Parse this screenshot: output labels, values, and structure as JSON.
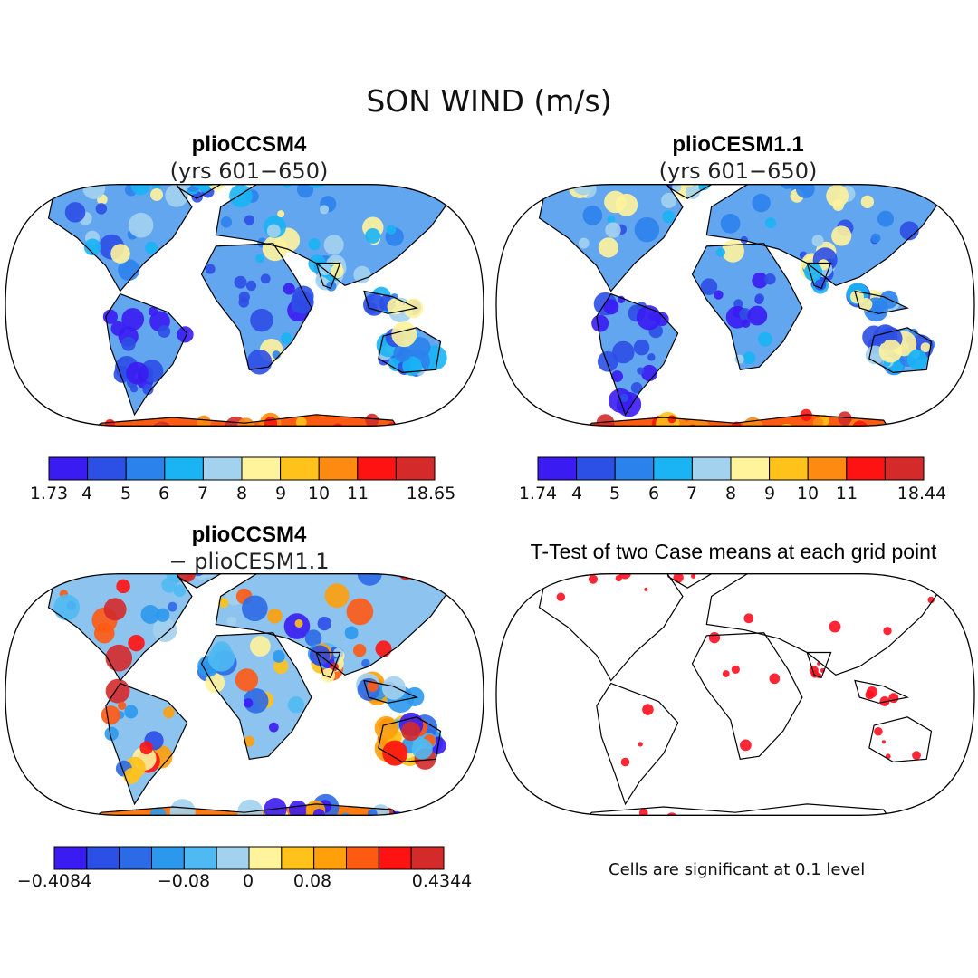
{
  "title": "SON WIND (m/s)",
  "colors": {
    "land": "#63a6f0",
    "outline": "#000000",
    "signif": "#ff1020"
  },
  "panels": {
    "top_left": {
      "title": "plioCCSM4",
      "subtitle": "(yrs 601−650)"
    },
    "top_right": {
      "title": "plioCESM1.1",
      "subtitle": "(yrs 601−650)"
    },
    "bottom_left": {
      "title": "plioCCSM4",
      "subtitle": "− plioCESM1.1"
    },
    "bottom_right": {
      "title": "T-Test of two Case means at each grid point"
    }
  },
  "note": "Cells are significant at 0.1 level",
  "chart_data": [
    {
      "type": "heatmap",
      "title": "plioCCSM4",
      "subtitle": "(yrs 601−650)",
      "colorbar": {
        "min_label": "1.73",
        "max_label": "18.65",
        "levels": [
          "4",
          "5",
          "6",
          "7",
          "8",
          "9",
          "10",
          "11"
        ],
        "colors": [
          "#3a1cf2",
          "#2c4fe6",
          "#2c82ec",
          "#1ab4f4",
          "#a3d2ee",
          "#fff39c",
          "#ffc21a",
          "#ff8a12",
          "#ff1212",
          "#d42a2a"
        ]
      }
    },
    {
      "type": "heatmap",
      "title": "plioCESM1.1",
      "subtitle": "(yrs 601−650)",
      "colorbar": {
        "min_label": "1.74",
        "max_label": "18.44",
        "levels": [
          "4",
          "5",
          "6",
          "7",
          "8",
          "9",
          "10",
          "11"
        ],
        "colors": [
          "#3a1cf2",
          "#2c4fe6",
          "#2c82ec",
          "#1ab4f4",
          "#a3d2ee",
          "#fff39c",
          "#ffc21a",
          "#ff8a12",
          "#ff1212",
          "#d42a2a"
        ]
      }
    },
    {
      "type": "heatmap",
      "title": "plioCCSM4",
      "subtitle": "− plioCESM1.1",
      "colorbar": {
        "min_label": "−0.4084",
        "max_label": "0.4344",
        "labels": [
          "−0.08",
          "0",
          "0.08"
        ],
        "colors": [
          "#3a1cf2",
          "#2c4fe6",
          "#2c6ae6",
          "#2c98ec",
          "#4fbaf2",
          "#a3d2ee",
          "#fff39c",
          "#ffc21a",
          "#ffa00a",
          "#ff5a12",
          "#ff1212",
          "#d42a2a"
        ]
      }
    },
    {
      "type": "heatmap",
      "title": "T-Test of two Case means at each grid point",
      "legend": "Cells are significant at 0.1 level"
    }
  ]
}
